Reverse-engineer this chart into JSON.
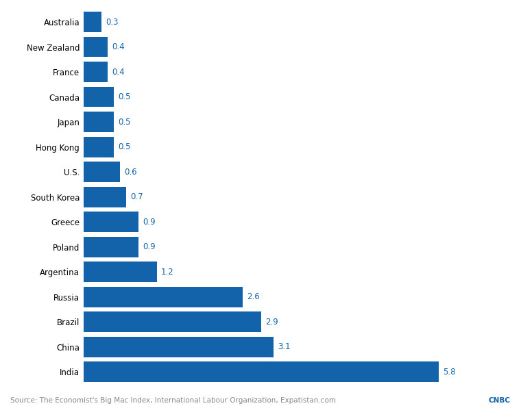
{
  "countries": [
    "India",
    "China",
    "Brazil",
    "Russia",
    "Argentina",
    "Poland",
    "Greece",
    "South Korea",
    "U.S.",
    "Hong Kong",
    "Japan",
    "Canada",
    "France",
    "New Zealand",
    "Australia"
  ],
  "values": [
    5.8,
    3.1,
    2.9,
    2.6,
    1.2,
    0.9,
    0.9,
    0.7,
    0.6,
    0.5,
    0.5,
    0.5,
    0.4,
    0.4,
    0.3
  ],
  "bar_color": "#1263aa",
  "label_color": "#1263aa",
  "background_color": "#ffffff",
  "source_text": "Source: The Economist's Big Mac Index, International Labour Organization, Expatistan.com",
  "source_right": "CNBC",
  "label_fontsize": 8.5,
  "value_fontsize": 8.5,
  "source_fontsize": 7.5,
  "bar_height": 0.82,
  "xlim": [
    0,
    6.8
  ]
}
